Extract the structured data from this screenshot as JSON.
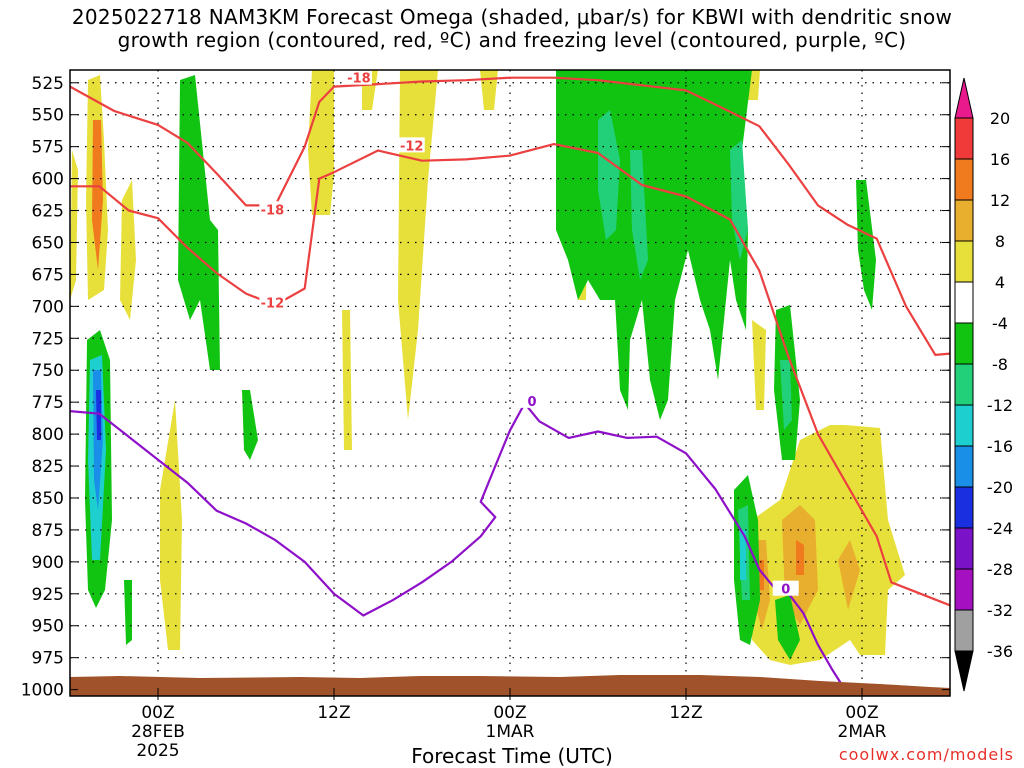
{
  "chart_data": {
    "type": "heatmap",
    "title_line1": "2025022718 NAM3KM Forecast Omega (shaded, μbar/s) for KBWI with dendritic snow",
    "title_line2": "growth region (contoured, red, ºC) and freezing level (contoured, purple, ºC)",
    "xlabel": "Forecast Time (UTC)",
    "credit": "coolwx.com/models",
    "y_ticks": [
      "525",
      "550",
      "575",
      "600",
      "625",
      "650",
      "675",
      "700",
      "725",
      "750",
      "775",
      "800",
      "825",
      "850",
      "875",
      "900",
      "925",
      "950",
      "975",
      "1000"
    ],
    "x_ticks": [
      {
        "hour": 6,
        "label": [
          "00Z",
          "28FEB",
          "2025"
        ]
      },
      {
        "hour": 18,
        "label": [
          "12Z"
        ]
      },
      {
        "hour": 30,
        "label": [
          "00Z",
          "1MAR"
        ]
      },
      {
        "hour": 42,
        "label": [
          "12Z"
        ]
      },
      {
        "hour": 54,
        "label": [
          "00Z",
          "2MAR"
        ]
      }
    ],
    "x_range_hours": [
      0,
      60
    ],
    "y_range_hpa": [
      1005,
      515
    ],
    "colorbar": {
      "labels": [
        "20",
        "16",
        "12",
        "8",
        "4",
        "-4",
        "-8",
        "-12",
        "-16",
        "-20",
        "-24",
        "-28",
        "-32",
        "-36"
      ],
      "bands": [
        {
          "range": "16 to 20",
          "color": "#f03a3a"
        },
        {
          "range": "12 to 16",
          "color": "#f07a1e"
        },
        {
          "range": "8 to 12",
          "color": "#e8ae2e"
        },
        {
          "range": "4 to 8",
          "color": "#e8e03a"
        },
        {
          "range": "-4 to 4",
          "color": "#ffffff"
        },
        {
          "range": "-8 to -4",
          "color": "#11c411"
        },
        {
          "range": "-12 to -8",
          "color": "#22d07a"
        },
        {
          "range": "-16 to -12",
          "color": "#1ecfcf"
        },
        {
          "range": "-20 to -16",
          "color": "#1a8fe8"
        },
        {
          "range": "-24 to -20",
          "color": "#1a30e0"
        },
        {
          "range": "-28 to -24",
          "color": "#7a12c8"
        },
        {
          "range": "-32 to -28",
          "color": "#a510c0"
        },
        {
          "range": "-36 to -32",
          "color": "#a0a0a0"
        }
      ],
      "top_arrow_color": "#e81a8c",
      "bottom_arrow_color": "#000000"
    },
    "contours": [
      {
        "label": "-18",
        "color": "#ec4040",
        "points": [
          [
            0,
            528
          ],
          [
            3,
            547
          ],
          [
            6,
            558
          ],
          [
            8,
            572
          ],
          [
            10,
            596
          ],
          [
            12,
            621
          ],
          [
            14,
            621
          ],
          [
            16,
            575
          ],
          [
            17,
            540
          ],
          [
            18,
            528
          ],
          [
            21,
            526
          ],
          [
            24,
            524
          ],
          [
            27,
            523
          ],
          [
            30,
            521
          ],
          [
            33,
            521
          ],
          [
            36,
            523
          ],
          [
            39,
            527
          ],
          [
            42,
            531
          ],
          [
            44,
            542
          ],
          [
            47,
            559
          ],
          [
            49,
            589
          ],
          [
            51,
            621
          ],
          [
            53,
            636
          ],
          [
            55,
            647
          ],
          [
            57,
            700
          ],
          [
            59,
            738
          ],
          [
            60,
            737
          ]
        ]
      },
      {
        "label": "-12",
        "color": "#ec4040",
        "points": [
          [
            0,
            606
          ],
          [
            2,
            606
          ],
          [
            4,
            625
          ],
          [
            6,
            631
          ],
          [
            8,
            654
          ],
          [
            10,
            674
          ],
          [
            12,
            690
          ],
          [
            14,
            699
          ],
          [
            16,
            686
          ],
          [
            17,
            600
          ],
          [
            18,
            595
          ],
          [
            21,
            578
          ],
          [
            24,
            586
          ],
          [
            27,
            585
          ],
          [
            30,
            582
          ],
          [
            33,
            573
          ],
          [
            36,
            580
          ],
          [
            39,
            605
          ],
          [
            42,
            614
          ],
          [
            45,
            632
          ],
          [
            47,
            672
          ],
          [
            49,
            740
          ],
          [
            51,
            800
          ],
          [
            53,
            840
          ],
          [
            55,
            880
          ],
          [
            56,
            916
          ],
          [
            58,
            925
          ],
          [
            60,
            934
          ]
        ]
      },
      {
        "label": "0",
        "color": "#8e10c8",
        "points": [
          [
            0,
            782
          ],
          [
            2,
            784
          ],
          [
            4,
            802
          ],
          [
            6,
            820
          ],
          [
            8,
            838
          ],
          [
            10,
            860
          ],
          [
            12,
            870
          ],
          [
            14,
            883
          ],
          [
            16,
            900
          ],
          [
            18,
            925
          ],
          [
            20,
            942
          ],
          [
            22,
            930
          ],
          [
            24,
            916
          ],
          [
            26,
            900
          ],
          [
            28,
            880
          ],
          [
            29,
            865
          ],
          [
            28,
            853
          ],
          [
            29,
            825
          ],
          [
            30,
            797
          ],
          [
            31,
            776
          ],
          [
            32,
            790
          ],
          [
            34,
            803
          ],
          [
            36,
            798
          ],
          [
            38,
            803
          ],
          [
            40,
            802
          ],
          [
            42,
            815
          ],
          [
            44,
            843
          ],
          [
            46,
            880
          ],
          [
            47,
            906
          ],
          [
            48,
            920
          ],
          [
            49,
            925
          ],
          [
            50,
            940
          ],
          [
            51,
            965
          ],
          [
            52,
            985
          ],
          [
            53,
            1003
          ]
        ]
      }
    ]
  }
}
